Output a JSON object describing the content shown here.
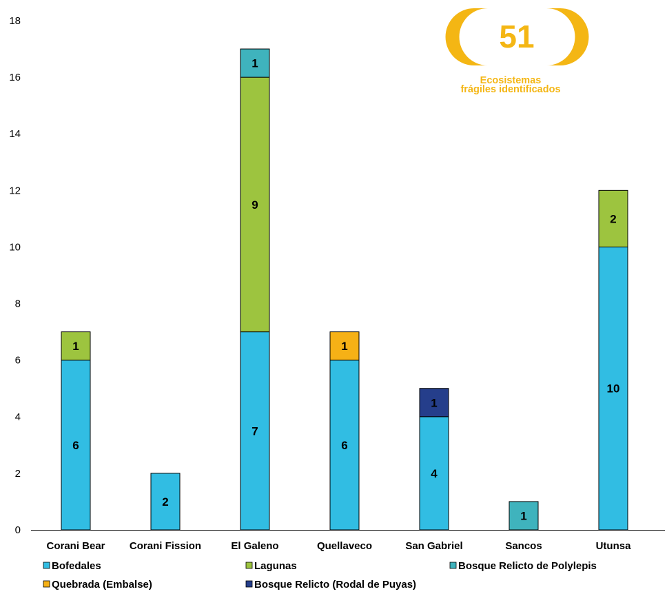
{
  "badge": {
    "number": "51",
    "caption_line1": "Ecosistemas",
    "caption_line2": "frágiles identificados",
    "color": "#F4B614"
  },
  "chart_data": {
    "type": "bar",
    "stacked": true,
    "categories": [
      "Corani Bear",
      "Corani Fission",
      "El Galeno",
      "Quellaveco",
      "San Gabriel",
      "Sancos",
      "Utunsa"
    ],
    "series": [
      {
        "name": "Bofedales",
        "color": "#31BDE3",
        "values": [
          6,
          2,
          7,
          6,
          4,
          0,
          10
        ]
      },
      {
        "name": "Lagunas",
        "color": "#9DC43F",
        "values": [
          1,
          0,
          9,
          0,
          0,
          0,
          2
        ]
      },
      {
        "name": "Bosque Relicto de Polylepis",
        "color": "#3FB3BD",
        "values": [
          0,
          0,
          1,
          0,
          0,
          1,
          0
        ]
      },
      {
        "name": "Quebrada (Embalse)",
        "color": "#F6B116",
        "values": [
          0,
          0,
          0,
          1,
          0,
          0,
          0
        ]
      },
      {
        "name": "Bosque Relicto (Rodal de Puyas)",
        "color": "#253E8B",
        "values": [
          0,
          0,
          0,
          0,
          1,
          0,
          0
        ]
      }
    ],
    "ylim": [
      0,
      18
    ],
    "yticks": [
      0,
      2,
      4,
      6,
      8,
      10,
      12,
      14,
      16,
      18
    ],
    "xlabel": "",
    "ylabel": "",
    "grid": false,
    "legend_position": "bottom"
  }
}
